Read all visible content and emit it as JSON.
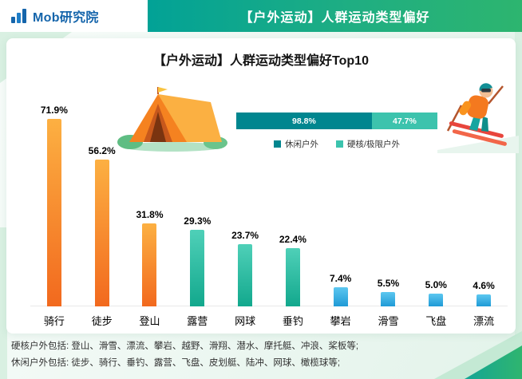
{
  "header": {
    "logo_text": "Mob研究院",
    "title": "【户外运动】人群运动类型偏好"
  },
  "chart_data": [
    {
      "type": "bar",
      "title": "【户外运动】人群运动类型偏好Top10",
      "categories": [
        "骑行",
        "徒步",
        "登山",
        "露营",
        "网球",
        "垂钓",
        "攀岩",
        "滑雪",
        "飞盘",
        "漂流"
      ],
      "values": [
        71.9,
        56.2,
        31.8,
        29.3,
        23.7,
        22.4,
        7.4,
        5.5,
        5.0,
        4.6
      ],
      "value_labels": [
        "71.9%",
        "56.2%",
        "31.8%",
        "29.3%",
        "23.7%",
        "22.4%",
        "7.4%",
        "5.5%",
        "5.0%",
        "4.6%"
      ],
      "ylim": [
        0,
        80
      ],
      "grid": false,
      "legend_position": "none",
      "palette": {
        "orange": [
          "#fcb042",
          "#f2691e"
        ],
        "teal": [
          "#4fd0b8",
          "#12a88d"
        ],
        "blue": [
          "#5cc7f0",
          "#1f9ad6"
        ]
      },
      "bar_colors": [
        "orange",
        "orange",
        "orange",
        "teal",
        "teal",
        "teal",
        "blue",
        "blue",
        "blue",
        "blue"
      ]
    },
    {
      "type": "stacked-bar",
      "segments": [
        {
          "label": "休闲户外",
          "text": "98.8%",
          "value": 98.8,
          "color": "#00868f"
        },
        {
          "label": "硬核/极限户外",
          "text": "47.7%",
          "value": 47.7,
          "color": "#3cc3ad"
        }
      ],
      "legend_position": "bottom"
    }
  ],
  "footnotes": {
    "line1": "硬核户外包括: 登山、滑雪、漂流、攀岩、越野、滑翔、潜水、摩托艇、冲浪、桨板等;",
    "line2": "休闲户外包括: 徒步、骑行、垂钓、露营、飞盘、皮划艇、陆冲、网球、橄榄球等;"
  },
  "colors": {
    "header_gradient_start": "#02a296",
    "header_gradient_end": "#2db56f",
    "logo_blue": "#1565ab",
    "card_background": "#ffffff",
    "page_background": "#eaf6f0"
  }
}
